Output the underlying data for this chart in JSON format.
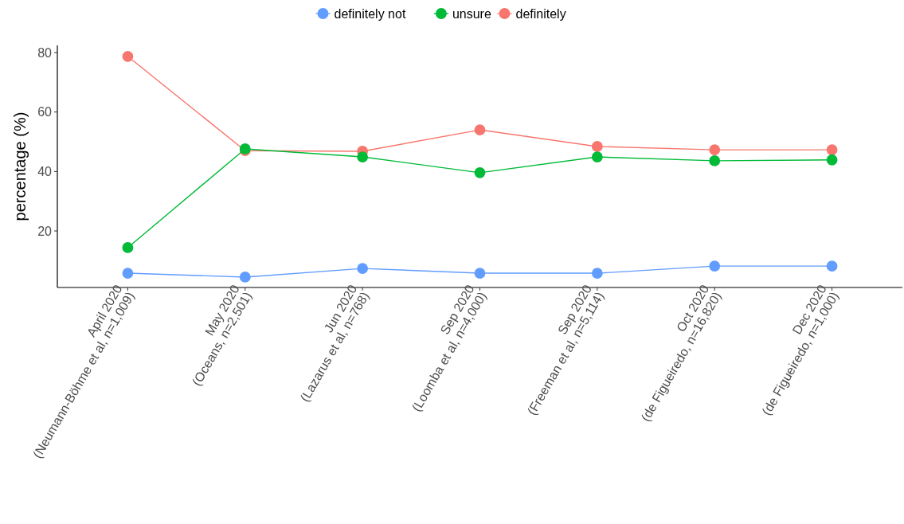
{
  "chart_data": {
    "type": "line",
    "ylabel": "percentage (%)",
    "categories": [
      "April 2020\n(Neumann-Böhme et al, n=1,009)",
      "May 2020\n(Oceans, n=2,501)",
      "Jun 2020\n(Lazarus et al, n=768)",
      "Sep 2020\n(Loomba et al, n=4,000)",
      "Sep 2020\n(Freeman et al, n=5,114)",
      "Oct 2020\n(de Figueiredo, n=16,820)",
      "Dec 2020\n(de Figueiredo, n=1,000)"
    ],
    "series": [
      {
        "name": "definitely not",
        "color": "#619cff",
        "values": [
          5.8,
          4.5,
          7.4,
          5.8,
          5.8,
          8.2,
          8.2
        ]
      },
      {
        "name": "unsure",
        "color": "#00ba38",
        "values": [
          14.4,
          47.6,
          44.9,
          39.6,
          44.9,
          43.6,
          43.9
        ]
      },
      {
        "name": "definitely",
        "color": "#f8766d",
        "values": [
          78.7,
          47.0,
          46.8,
          54,
          48.4,
          47.3,
          47.3
        ]
      }
    ],
    "ylim": [
      1,
      82.4
    ],
    "yticks": [
      20,
      40,
      60,
      80
    ],
    "grid": false,
    "legend": "top",
    "marker": "circle",
    "line_style": "solid"
  }
}
